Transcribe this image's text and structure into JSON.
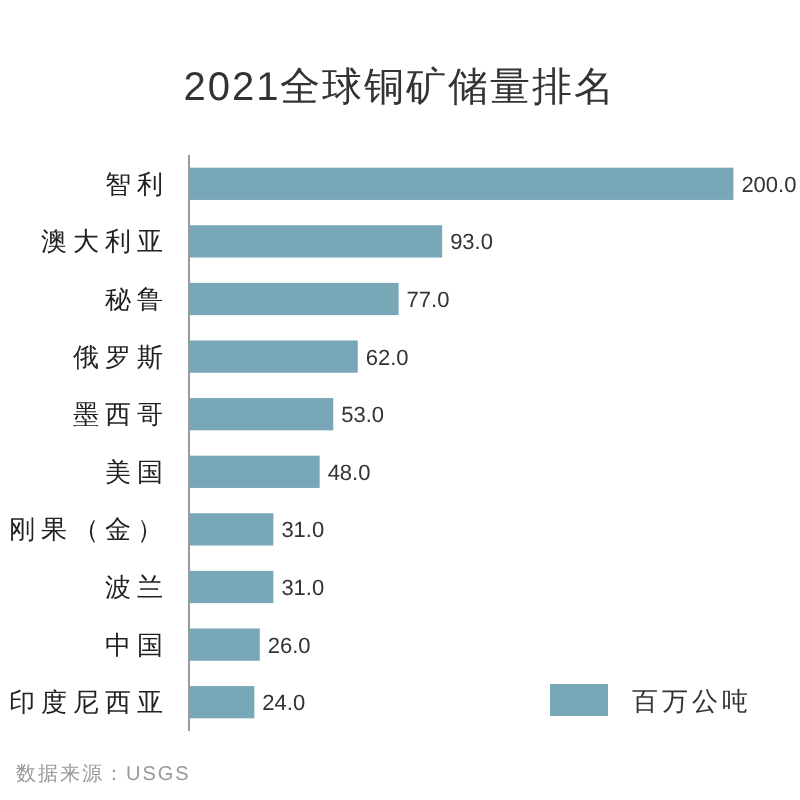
{
  "chart_data": {
    "type": "bar",
    "orientation": "horizontal",
    "title": "2021全球铜矿储量排名",
    "categories": [
      "智利",
      "澳大利亚",
      "秘鲁",
      "俄罗斯",
      "墨西哥",
      "美国",
      "刚果（金）",
      "波兰",
      "中国",
      "印度尼西亚"
    ],
    "series": [
      {
        "name": "百万公吨",
        "color": "#78a7b7",
        "values": [
          200,
          93,
          77,
          62,
          53,
          48,
          31,
          31,
          26,
          24
        ],
        "value_labels": [
          "200.0",
          "93.0",
          "77.0",
          "62.0",
          "53.0",
          "48.0",
          "31.0",
          "31.0",
          "26.0",
          "24.0"
        ]
      }
    ],
    "xlim": [
      0,
      200
    ],
    "legend": "bottom right",
    "annotations": [
      "数据来源：USGS"
    ]
  }
}
